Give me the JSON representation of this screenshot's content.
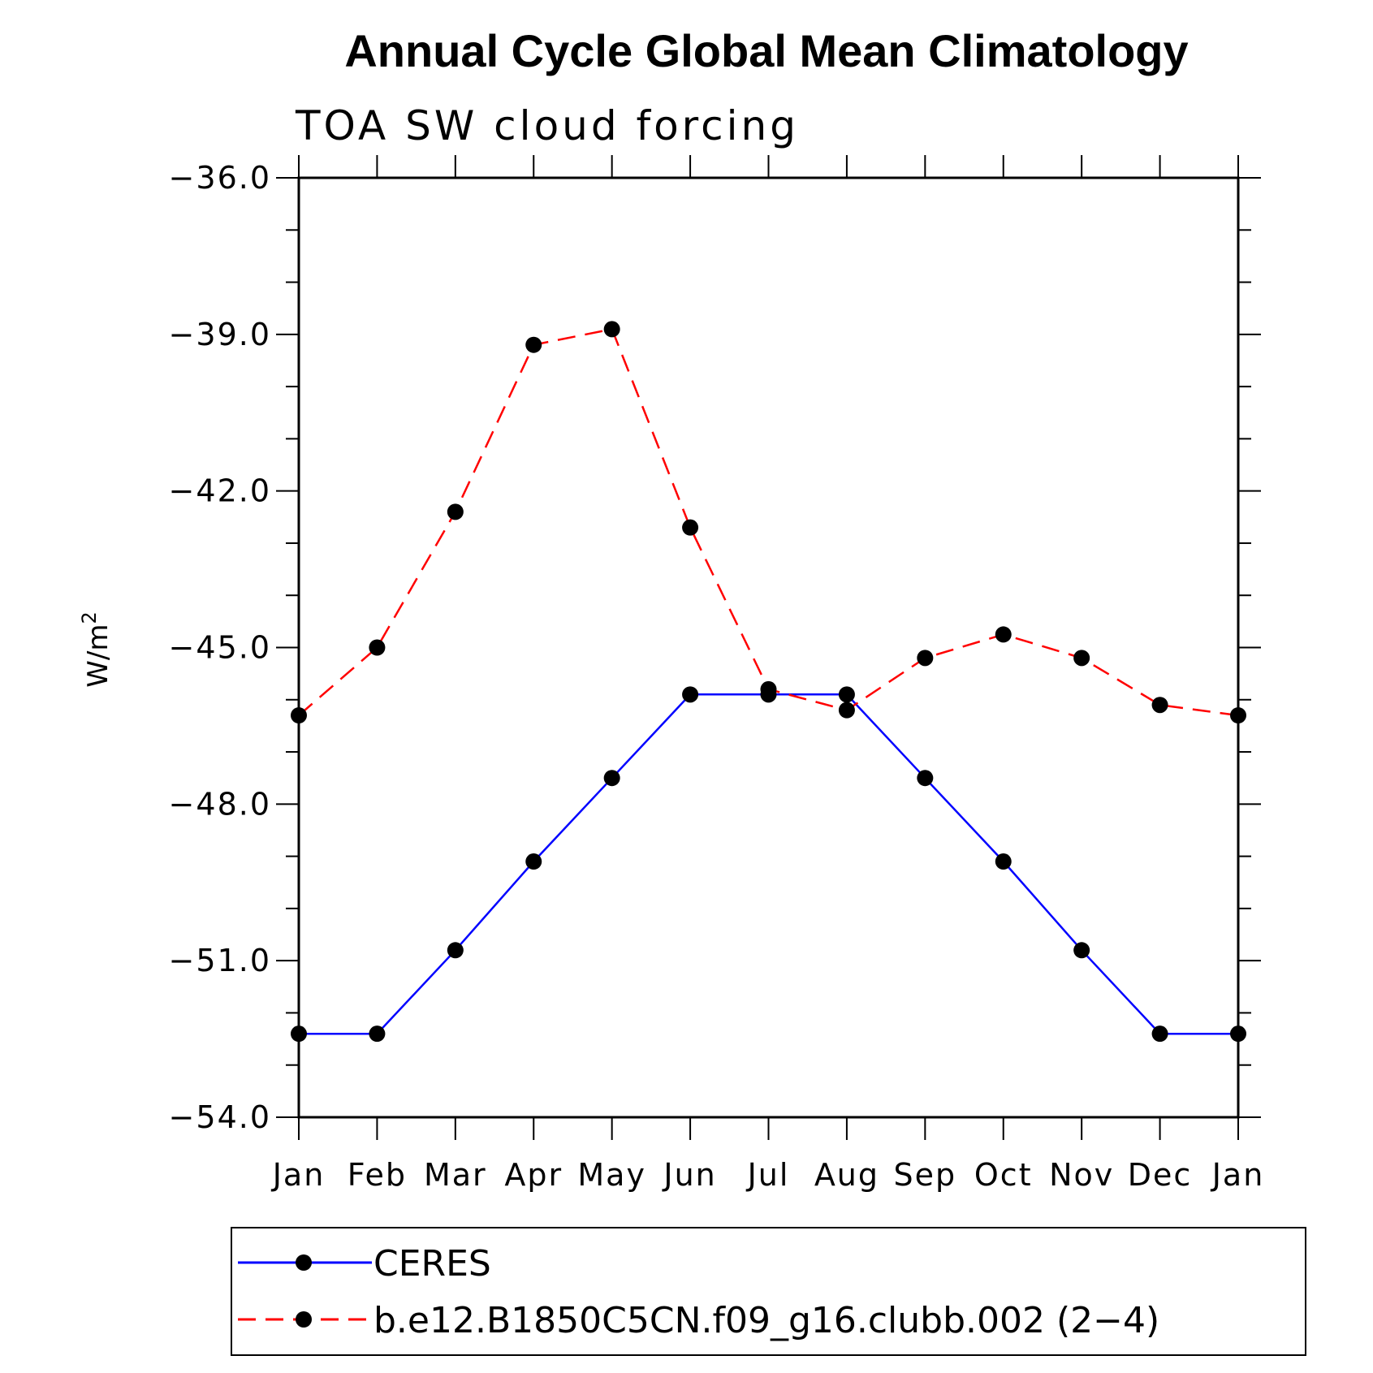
{
  "chart_data": {
    "type": "line",
    "title": "Annual Cycle Global Mean Climatology",
    "subtitle": "TOA SW cloud forcing",
    "ylabel": "W/m",
    "ylabel_superscript": "2",
    "xlabel": "",
    "categories": [
      "Jan",
      "Feb",
      "Mar",
      "Apr",
      "May",
      "Jun",
      "Jul",
      "Aug",
      "Sep",
      "Oct",
      "Nov",
      "Dec",
      "Jan"
    ],
    "ylim": [
      -54.0,
      -36.0
    ],
    "yticks": [
      "-54.0",
      "-51.0",
      "-48.0",
      "-45.0",
      "-42.0",
      "-39.0",
      "-36.0"
    ],
    "series": [
      {
        "name": "CERES",
        "color": "#0000ff",
        "dash": "solid",
        "values": [
          -52.4,
          -52.4,
          -50.8,
          -49.1,
          -47.5,
          -45.9,
          -45.9,
          -45.9,
          -47.5,
          -49.1,
          -50.8,
          -52.4,
          -52.4
        ]
      },
      {
        "name": "b.e12.B1850C5CN.f09_g16.clubb.002 (2−4)",
        "color": "#ff0000",
        "dash": "dashed",
        "values": [
          -46.3,
          -45.0,
          -42.4,
          -39.2,
          -38.9,
          -42.7,
          -45.8,
          -46.2,
          -45.2,
          -44.75,
          -45.2,
          -46.1,
          -46.3
        ]
      }
    ],
    "legend_position": "bottom",
    "grid": false
  }
}
